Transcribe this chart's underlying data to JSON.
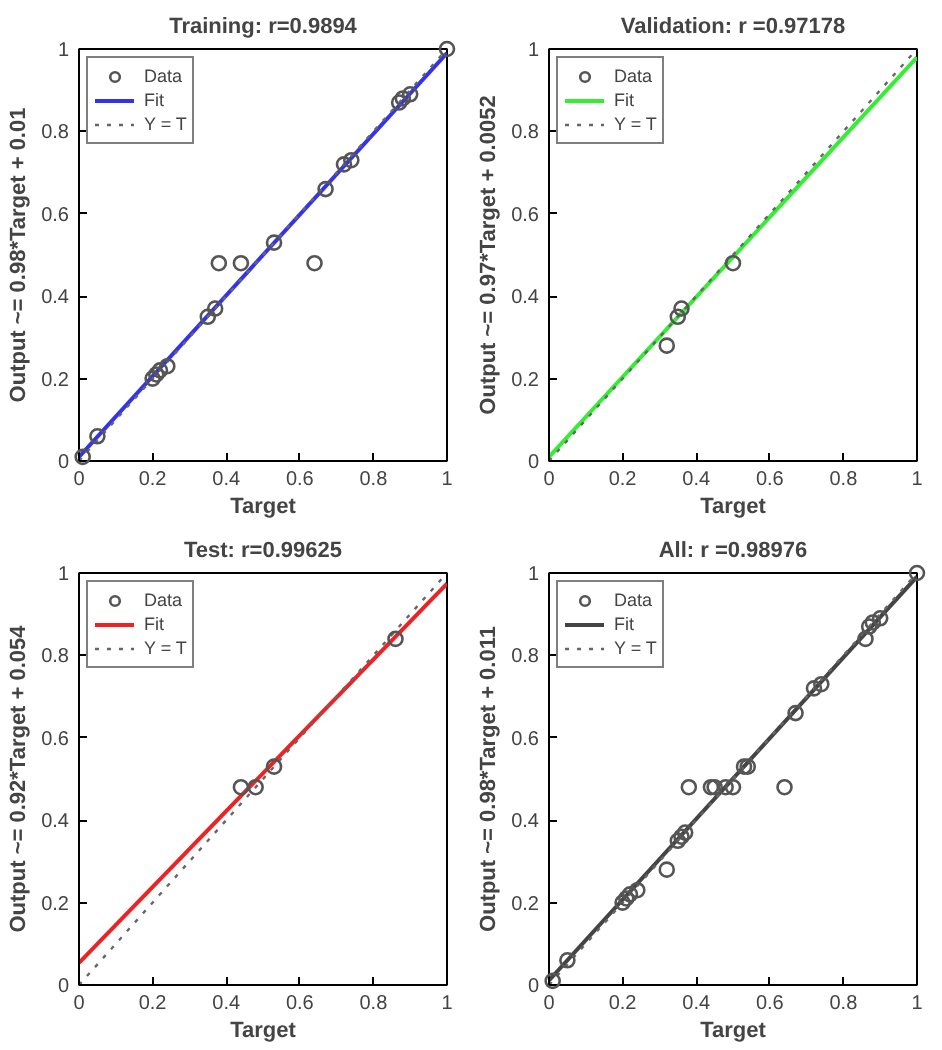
{
  "chart_data": [
    {
      "type": "scatter",
      "title": "Training: r=0.9894",
      "xlabel": "Target",
      "ylabel": "Output ~= 0.98*Target + 0.01",
      "xlim": [
        0,
        1
      ],
      "ylim": [
        0,
        1
      ],
      "xticks": [
        0,
        0.2,
        0.4,
        0.6,
        0.8,
        1
      ],
      "yticks": [
        0,
        0.2,
        0.4,
        0.6,
        0.8,
        1
      ],
      "grid": false,
      "legend": "top left",
      "series": [
        {
          "name": "Data",
          "marker": "circle",
          "color": "#555555",
          "x": [
            0.01,
            0.05,
            0.2,
            0.21,
            0.22,
            0.24,
            0.35,
            0.37,
            0.38,
            0.44,
            0.53,
            0.64,
            0.67,
            0.72,
            0.74,
            0.87,
            0.88,
            0.9,
            1
          ],
          "values": [
            0.01,
            0.06,
            0.2,
            0.21,
            0.22,
            0.23,
            0.35,
            0.37,
            0.48,
            0.48,
            0.53,
            0.48,
            0.66,
            0.72,
            0.73,
            0.87,
            0.88,
            0.89,
            1
          ]
        },
        {
          "name": "Fit",
          "type": "line",
          "line_style": "solid",
          "color": "#3333ee",
          "x": [
            0,
            1
          ],
          "values": [
            0.01,
            0.99
          ]
        },
        {
          "name": "Y = T",
          "type": "line",
          "line_style": "dotted",
          "color": "#666666",
          "x": [
            0,
            1
          ],
          "values": [
            0,
            1
          ]
        }
      ]
    },
    {
      "type": "scatter",
      "title": "Validation: r =0.97178",
      "xlabel": "Target",
      "ylabel": "Output ~= 0.97*Target + 0.0052",
      "xlim": [
        0,
        1
      ],
      "ylim": [
        0,
        1
      ],
      "xticks": [
        0,
        0.2,
        0.4,
        0.6,
        0.8,
        1
      ],
      "yticks": [
        0,
        0.2,
        0.4,
        0.6,
        0.8,
        1
      ],
      "grid": false,
      "legend": "top left",
      "series": [
        {
          "name": "Data",
          "marker": "circle",
          "color": "#555555",
          "x": [
            0.32,
            0.35,
            0.36,
            0.5
          ],
          "values": [
            0.28,
            0.35,
            0.37,
            0.48
          ]
        },
        {
          "name": "Fit",
          "type": "line",
          "line_style": "solid",
          "color": "#33ee33",
          "x": [
            0,
            1
          ],
          "values": [
            0.01,
            0.98
          ]
        },
        {
          "name": "Y = T",
          "type": "line",
          "line_style": "dotted",
          "color": "#666666",
          "x": [
            0,
            1
          ],
          "values": [
            0,
            1
          ]
        }
      ]
    },
    {
      "type": "scatter",
      "title": "Test: r=0.99625",
      "xlabel": "Target",
      "ylabel": "Output ~= 0.92*Target + 0.054",
      "xlim": [
        0,
        1
      ],
      "ylim": [
        0,
        1
      ],
      "xticks": [
        0,
        0.2,
        0.4,
        0.6,
        0.8,
        1
      ],
      "yticks": [
        0,
        0.2,
        0.4,
        0.6,
        0.8,
        1
      ],
      "grid": false,
      "legend": "top left",
      "series": [
        {
          "name": "Data",
          "marker": "circle",
          "color": "#555555",
          "x": [
            0.44,
            0.48,
            0.53,
            0.86
          ],
          "values": [
            0.48,
            0.48,
            0.53,
            0.84
          ]
        },
        {
          "name": "Fit",
          "type": "line",
          "line_style": "solid",
          "color": "#ee2222",
          "x": [
            0,
            1
          ],
          "values": [
            0.054,
            0.974
          ]
        },
        {
          "name": "Y = T",
          "type": "line",
          "line_style": "dotted",
          "color": "#666666",
          "x": [
            0,
            1
          ],
          "values": [
            0,
            1
          ]
        }
      ]
    },
    {
      "type": "scatter",
      "title": "All: r =0.98976",
      "xlabel": "Target",
      "ylabel": "Output ~= 0.98*Target + 0.011",
      "xlim": [
        0,
        1
      ],
      "ylim": [
        0,
        1
      ],
      "xticks": [
        0,
        0.2,
        0.4,
        0.6,
        0.8,
        1
      ],
      "yticks": [
        0,
        0.2,
        0.4,
        0.6,
        0.8,
        1
      ],
      "grid": false,
      "legend": "top left",
      "series": [
        {
          "name": "Data",
          "marker": "circle",
          "color": "#555555",
          "x": [
            0.01,
            0.05,
            0.2,
            0.21,
            0.22,
            0.24,
            0.32,
            0.35,
            0.36,
            0.37,
            0.38,
            0.44,
            0.45,
            0.48,
            0.5,
            0.53,
            0.54,
            0.64,
            0.67,
            0.72,
            0.74,
            0.86,
            0.87,
            0.88,
            0.9,
            1
          ],
          "values": [
            0.01,
            0.06,
            0.2,
            0.21,
            0.22,
            0.23,
            0.28,
            0.35,
            0.36,
            0.37,
            0.48,
            0.48,
            0.48,
            0.48,
            0.48,
            0.53,
            0.53,
            0.48,
            0.66,
            0.72,
            0.73,
            0.84,
            0.87,
            0.88,
            0.89,
            1
          ]
        },
        {
          "name": "Fit",
          "type": "line",
          "line_style": "solid",
          "color": "#444444",
          "x": [
            0,
            1
          ],
          "values": [
            0.011,
            0.991
          ]
        },
        {
          "name": "Y = T",
          "type": "line",
          "line_style": "dotted",
          "color": "#666666",
          "x": [
            0,
            1
          ],
          "values": [
            0,
            1
          ]
        }
      ]
    }
  ]
}
